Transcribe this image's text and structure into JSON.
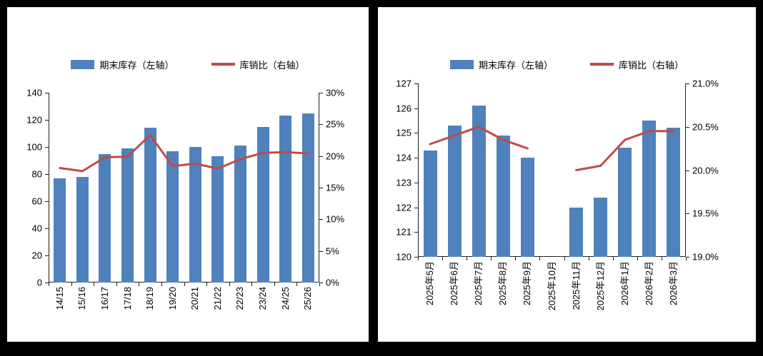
{
  "page": {
    "background": "#000000",
    "panel_background": "#ffffff"
  },
  "charts": [
    {
      "legend": {
        "bar_label": "期末库存（左轴）",
        "line_label": "库销比（右轴）"
      },
      "colors": {
        "bar": "#4f81bd",
        "line": "#be4b48"
      },
      "chart_data": {
        "type": "bar+line",
        "title": "",
        "categories": [
          "14/15",
          "15/16",
          "16/17",
          "17/18",
          "18/19",
          "19/20",
          "20/21",
          "21/22",
          "22/23",
          "23/24",
          "24/25",
          "25/26"
        ],
        "series": [
          {
            "name": "期末库存（左轴）",
            "type": "bar",
            "axis": "left",
            "color": "#4f81bd",
            "values": [
              77,
              78,
              95,
              99,
              114,
              97,
              100,
              93,
              101,
              115,
              123,
              125
            ]
          },
          {
            "name": "库销比（右轴）",
            "type": "line",
            "axis": "right",
            "color": "#be4b48",
            "values": [
              18.1,
              17.6,
              19.8,
              19.9,
              23.3,
              18.4,
              18.8,
              18.0,
              19.5,
              20.5,
              20.6,
              20.4
            ]
          }
        ],
        "left_axis": {
          "min": 0,
          "max": 140,
          "step": 20,
          "tick_labels": [
            "0",
            "20",
            "40",
            "60",
            "80",
            "100",
            "120",
            "140"
          ]
        },
        "right_axis": {
          "min": 0,
          "max": 30,
          "step": 5,
          "tick_labels": [
            "0%",
            "5%",
            "10%",
            "15%",
            "20%",
            "25%",
            "30%"
          ]
        },
        "legend_position": "top",
        "grid": false
      }
    },
    {
      "legend": {
        "bar_label": "期末库存（左轴）",
        "line_label": "库销比（右轴）"
      },
      "colors": {
        "bar": "#4f81bd",
        "line": "#be4b48"
      },
      "chart_data": {
        "type": "bar+line",
        "title": "",
        "categories": [
          "2025年5月",
          "2025年6月",
          "2025年7月",
          "2025年8月",
          "2025年9月",
          "2025年10月",
          "2025年11月",
          "2025年12月",
          "2026年1月",
          "2026年2月",
          "2026年3月"
        ],
        "series": [
          {
            "name": "期末库存（左轴）",
            "type": "bar",
            "axis": "left",
            "color": "#4f81bd",
            "values": [
              124.3,
              125.3,
              126.1,
              124.9,
              124.0,
              null,
              122.0,
              122.4,
              124.4,
              125.5,
              125.2
            ]
          },
          {
            "name": "库销比（右轴）",
            "type": "line",
            "axis": "right",
            "color": "#be4b48",
            "values": [
              20.3,
              20.4,
              20.5,
              20.35,
              20.25,
              null,
              20.0,
              20.05,
              20.35,
              20.45,
              20.45
            ]
          }
        ],
        "left_axis": {
          "min": 120,
          "max": 127,
          "step": 1,
          "tick_labels": [
            "120",
            "121",
            "122",
            "123",
            "124",
            "125",
            "126",
            "127"
          ]
        },
        "right_axis": {
          "min": 19.0,
          "max": 21.0,
          "step": 0.5,
          "tick_labels": [
            "19.0%",
            "19.5%",
            "20.0%",
            "20.5%",
            "21.0%"
          ]
        },
        "legend_position": "top",
        "grid": false
      }
    }
  ]
}
